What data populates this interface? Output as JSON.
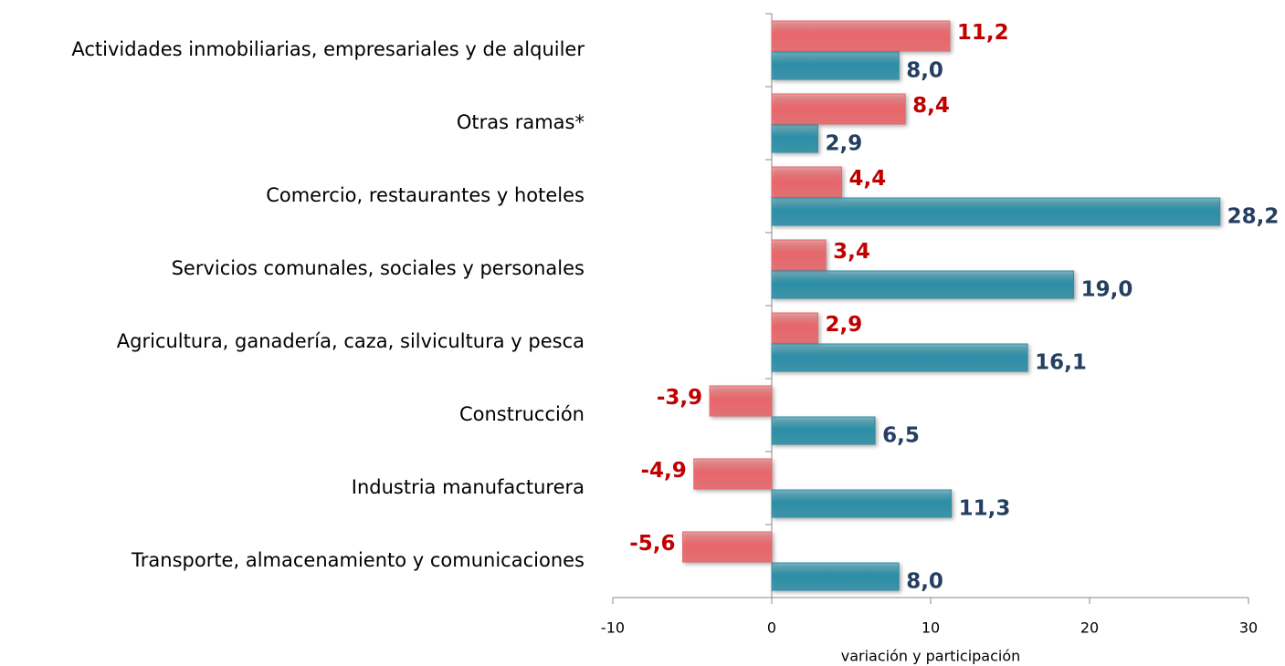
{
  "chart_data": {
    "type": "bar",
    "orientation": "horizontal",
    "x_label": "variación y participación",
    "categories": [
      "Actividades inmobiliarias, empresariales y de alquiler",
      "Otras ramas*",
      "Comercio, restaurantes y hoteles",
      "Servicios comunales, sociales y personales",
      "Agricultura, ganadería, caza, silvicultura y pesca",
      "Construcción",
      "Industria manufacturera",
      "Transporte, almacenamiento y comunicaciones"
    ],
    "series": [
      {
        "color": "#e8666a",
        "label_color": "#c00000",
        "values": [
          11.2,
          8.4,
          4.4,
          3.4,
          2.9,
          -3.9,
          -4.9,
          -5.6
        ],
        "value_labels": [
          "11,2",
          "8,4",
          "4,4",
          "3,4",
          "2,9",
          "-3,9",
          "-4,9",
          "-5,6"
        ]
      },
      {
        "color": "#2b8ea6",
        "label_color": "#243f60",
        "values": [
          8.0,
          2.9,
          28.2,
          19.0,
          16.1,
          6.5,
          11.3,
          8.0
        ],
        "value_labels": [
          "8,0",
          "2,9",
          "28,2",
          "19,0",
          "16,1",
          "6,5",
          "11,3",
          "8,0"
        ]
      }
    ],
    "xlim": [
      -10,
      30
    ],
    "xticks": [
      -10,
      0,
      10,
      20,
      30
    ]
  }
}
